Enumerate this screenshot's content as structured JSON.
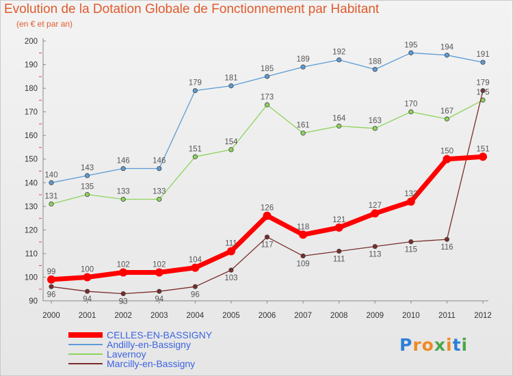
{
  "title": "Evolution de la Dotation Globale de Fonctionnement par Habitant",
  "subtitle": "(en € et par an)",
  "brand": {
    "letters": [
      "P",
      "r",
      "o",
      "x",
      "i",
      "t",
      "i"
    ],
    "colors": [
      "#2e7fd6",
      "#f08a24",
      "#f08a24",
      "#4aa64a",
      "#f08a24",
      "#2e7fd6",
      "#4aa64a"
    ]
  },
  "chart_data": {
    "type": "line",
    "title": "Evolution de la Dotation Globale de Fonctionnement par Habitant",
    "subtitle": "(en € et par an)",
    "xlabel": "",
    "ylabel": "",
    "ylim": [
      90,
      200
    ],
    "yticks": [
      "90",
      "100",
      "110",
      "120",
      "130",
      "140",
      "150",
      "160",
      "170",
      "180",
      "190",
      "200"
    ],
    "categories": [
      "2000",
      "2001",
      "2002",
      "2003",
      "2004",
      "2005",
      "2006",
      "2007",
      "2008",
      "2009",
      "2010",
      "2011",
      "2012"
    ],
    "grid": false,
    "legend_position": "bottom-left",
    "series": [
      {
        "name": "Andilly-en-Bassigny",
        "color": "#5b9bd5",
        "values": [
          140,
          143,
          146,
          146,
          179,
          181,
          185,
          189,
          192,
          188,
          195,
          194,
          191
        ],
        "labels": [
          "140",
          "143",
          "146",
          "146",
          "179",
          "181",
          "185",
          "189",
          "192",
          "188",
          "195",
          "194",
          "191"
        ]
      },
      {
        "name": "Lavernoy",
        "color": "#8cd45a",
        "values": [
          131,
          135,
          133,
          133,
          151,
          154,
          173,
          161,
          164,
          163,
          170,
          167,
          175
        ],
        "labels": [
          "131",
          "135",
          "133",
          "133",
          "151",
          "154",
          "173",
          "161",
          "164",
          "163",
          "170",
          "167",
          "175"
        ]
      },
      {
        "name": "Marcilly-en-Bassigny",
        "color": "#7a2b2b",
        "values": [
          96,
          94,
          93,
          94,
          96,
          103,
          117,
          109,
          111,
          113,
          115,
          116,
          179
        ],
        "labels": [
          "96",
          "94",
          "93",
          "94",
          "96",
          "103",
          "117",
          "109",
          "111",
          "113",
          "115",
          "116",
          "179"
        ]
      },
      {
        "name": "CELLES-EN-BASSIGNY",
        "color": "#ff0000",
        "values": [
          99,
          100,
          102,
          102,
          104,
          111,
          126,
          118,
          121,
          127,
          132,
          150,
          151
        ],
        "labels": [
          "99",
          "100",
          "102",
          "102",
          "104",
          "111",
          "126",
          "118",
          "121",
          "127",
          "132",
          "150",
          "151"
        ]
      }
    ],
    "legend": [
      "CELLES-EN-BASSIGNY",
      "Andilly-en-Bassigny",
      "Lavernoy",
      "Marcilly-en-Bassigny"
    ]
  }
}
